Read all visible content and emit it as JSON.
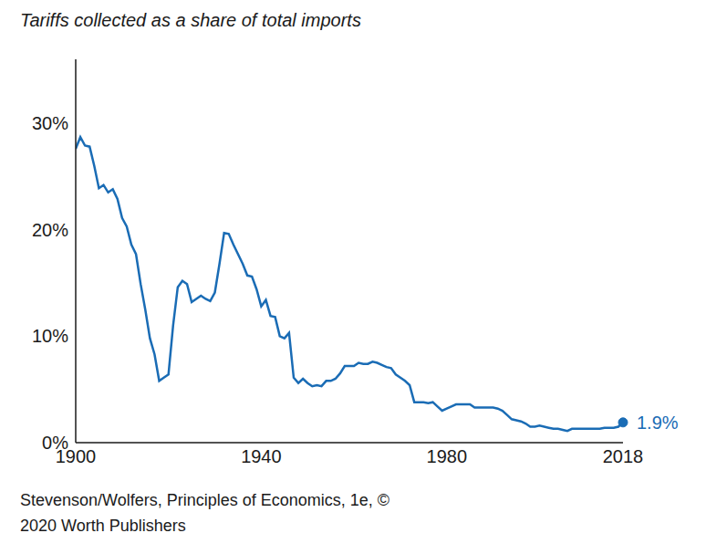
{
  "chart_data": {
    "type": "line",
    "title": "Tariffs collected as a share of total imports",
    "source": "Stevenson/Wolfers, Principles of Economics, 1e, © 2020 Worth Publishers",
    "color": "#1a6cb5",
    "grid": false,
    "x": [
      1900,
      1901,
      1902,
      1903,
      1904,
      1905,
      1906,
      1907,
      1908,
      1909,
      1910,
      1911,
      1912,
      1913,
      1914,
      1915,
      1916,
      1917,
      1918,
      1919,
      1920,
      1921,
      1922,
      1923,
      1924,
      1925,
      1926,
      1927,
      1928,
      1929,
      1930,
      1931,
      1932,
      1933,
      1934,
      1935,
      1936,
      1937,
      1938,
      1939,
      1940,
      1941,
      1942,
      1943,
      1944,
      1945,
      1946,
      1947,
      1948,
      1949,
      1950,
      1951,
      1952,
      1953,
      1954,
      1955,
      1956,
      1957,
      1958,
      1959,
      1960,
      1961,
      1962,
      1963,
      1964,
      1965,
      1966,
      1967,
      1968,
      1969,
      1970,
      1971,
      1972,
      1973,
      1974,
      1975,
      1976,
      1977,
      1978,
      1979,
      1980,
      1981,
      1982,
      1983,
      1984,
      1985,
      1986,
      1987,
      1988,
      1989,
      1990,
      1991,
      1992,
      1993,
      1994,
      1995,
      1996,
      1997,
      1998,
      1999,
      2000,
      2001,
      2002,
      2003,
      2004,
      2005,
      2006,
      2007,
      2008,
      2009,
      2010,
      2011,
      2012,
      2013,
      2014,
      2015,
      2016,
      2017,
      2018
    ],
    "values": [
      27.6,
      28.7,
      27.9,
      27.8,
      26.0,
      23.9,
      24.2,
      23.5,
      23.8,
      22.9,
      21.1,
      20.3,
      18.6,
      17.7,
      14.9,
      12.5,
      9.8,
      8.3,
      5.8,
      6.1,
      6.4,
      11.0,
      14.6,
      15.2,
      14.9,
      13.2,
      13.5,
      13.8,
      13.5,
      13.3,
      14.1,
      16.8,
      19.7,
      19.6,
      18.6,
      17.7,
      16.8,
      15.7,
      15.6,
      14.4,
      12.8,
      13.4,
      11.9,
      11.8,
      10.0,
      9.8,
      10.3,
      6.1,
      5.6,
      6.0,
      5.6,
      5.3,
      5.4,
      5.3,
      5.8,
      5.8,
      6.0,
      6.5,
      7.2,
      7.2,
      7.2,
      7.5,
      7.4,
      7.4,
      7.6,
      7.5,
      7.3,
      7.1,
      7.0,
      6.4,
      6.1,
      5.8,
      5.4,
      3.8,
      3.8,
      3.8,
      3.7,
      3.8,
      3.4,
      3.0,
      3.2,
      3.4,
      3.6,
      3.6,
      3.6,
      3.6,
      3.3,
      3.3,
      3.3,
      3.3,
      3.3,
      3.2,
      3.0,
      2.6,
      2.2,
      2.1,
      2.0,
      1.8,
      1.5,
      1.5,
      1.6,
      1.5,
      1.4,
      1.3,
      1.3,
      1.2,
      1.1,
      1.3,
      1.3,
      1.3,
      1.3,
      1.3,
      1.3,
      1.3,
      1.4,
      1.4,
      1.4,
      1.5,
      1.9
    ],
    "xlim": [
      1900,
      2018
    ],
    "xticks": [
      1900,
      1940,
      1980,
      2018
    ],
    "ylim": [
      0,
      36
    ],
    "yticks": [
      {
        "value": 0,
        "label": "0%"
      },
      {
        "value": 10,
        "label": "10%"
      },
      {
        "value": 20,
        "label": "20%"
      },
      {
        "value": 30,
        "label": "30%"
      }
    ],
    "annotations": [
      {
        "x": 2018,
        "y": 1.9,
        "text": "1.9%"
      }
    ]
  }
}
